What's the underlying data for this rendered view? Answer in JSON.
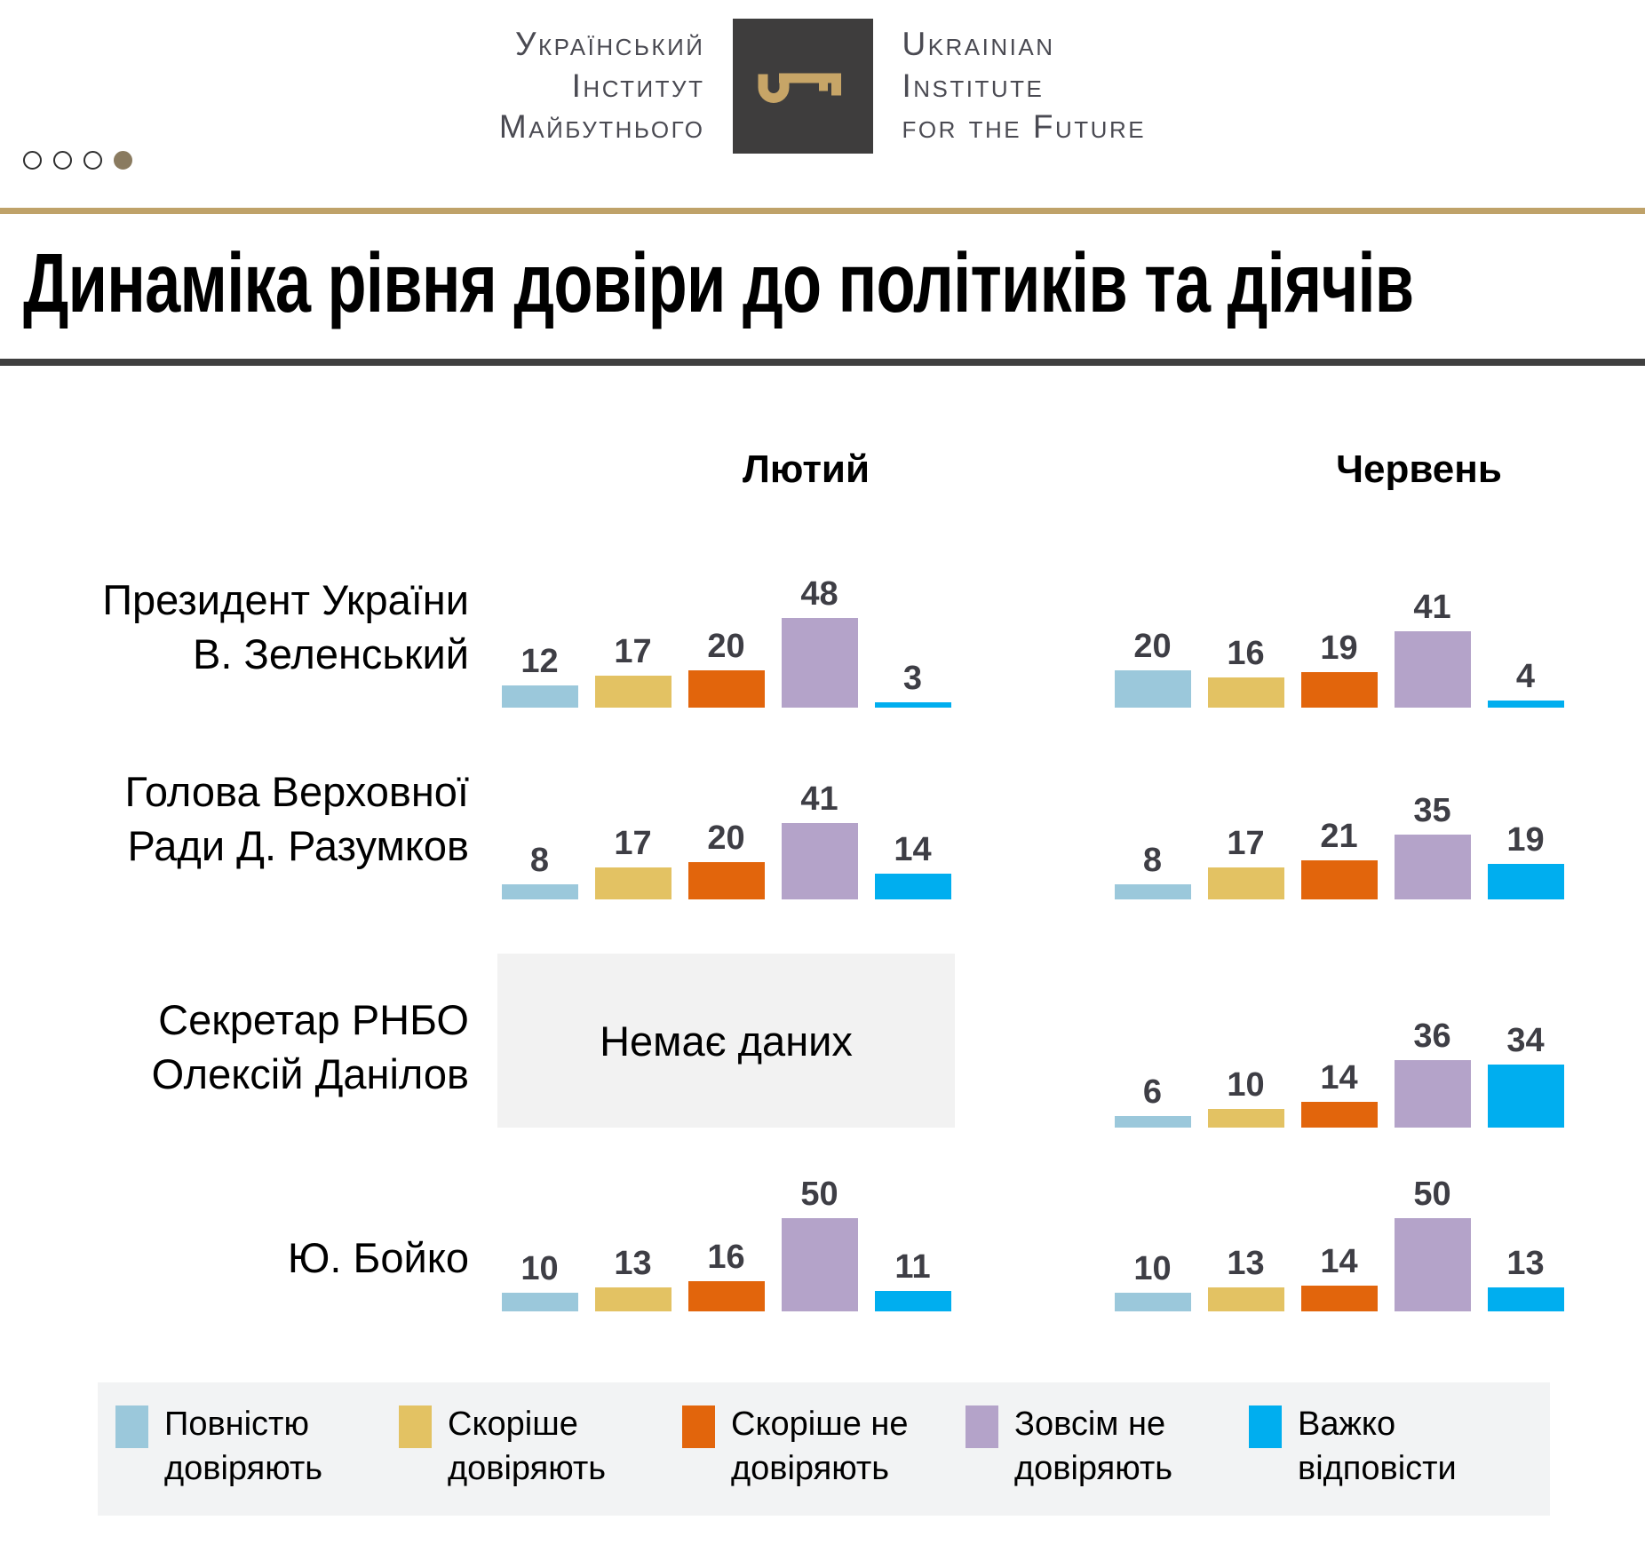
{
  "header": {
    "logo_uk": {
      "line1": "Український",
      "line2": "Інститут",
      "line3": "Майбутнього"
    },
    "logo_en": {
      "line1": "Ukrainian",
      "line2": "Institute",
      "line3": "for the Future"
    },
    "pagination_dots": {
      "total": 4,
      "active_index": 3
    },
    "colors": {
      "logo_box": "#3e3d3d",
      "logo_key": "#c7a567",
      "gold_line": "#bfa269",
      "dark_line": "#3f3f3f",
      "active_dot": "#8a7b60"
    }
  },
  "title": "Динаміка рівня довіри до політиків та діячів",
  "chart_data": {
    "type": "bar",
    "unit": "percent",
    "columns": [
      "Лютий",
      "Червень"
    ],
    "series_labels": [
      "Повністю довіряють",
      "Скоріше довіряють",
      "Скоріше не довіряють",
      "Зовсім не довіряють",
      "Важко відповісти"
    ],
    "series_colors": [
      "#9bc8db",
      "#e3c263",
      "#e2650c",
      "#b4a3c9",
      "#00aeef"
    ],
    "value_range": [
      0,
      50
    ],
    "grid": false,
    "legend_position": "bottom",
    "no_data_label": "Немає даних",
    "rows": [
      {
        "label_lines": [
          "Президент України",
          "В. Зеленський"
        ],
        "values": {
          "feb": [
            12,
            17,
            20,
            48,
            3
          ],
          "jun": [
            20,
            16,
            19,
            41,
            4
          ]
        }
      },
      {
        "label_lines": [
          "Голова Верховної",
          "Ради Д. Разумков"
        ],
        "values": {
          "feb": [
            8,
            17,
            20,
            41,
            14
          ],
          "jun": [
            8,
            17,
            21,
            35,
            19
          ]
        }
      },
      {
        "label_lines": [
          "Секретар РНБО",
          "Олексій Данілов"
        ],
        "values": {
          "feb": null,
          "jun": [
            6,
            10,
            14,
            36,
            34
          ]
        }
      },
      {
        "label_lines": [
          "Ю. Бойко"
        ],
        "values": {
          "feb": [
            10,
            13,
            16,
            50,
            11
          ],
          "jun": [
            10,
            13,
            14,
            50,
            13
          ]
        }
      }
    ]
  }
}
